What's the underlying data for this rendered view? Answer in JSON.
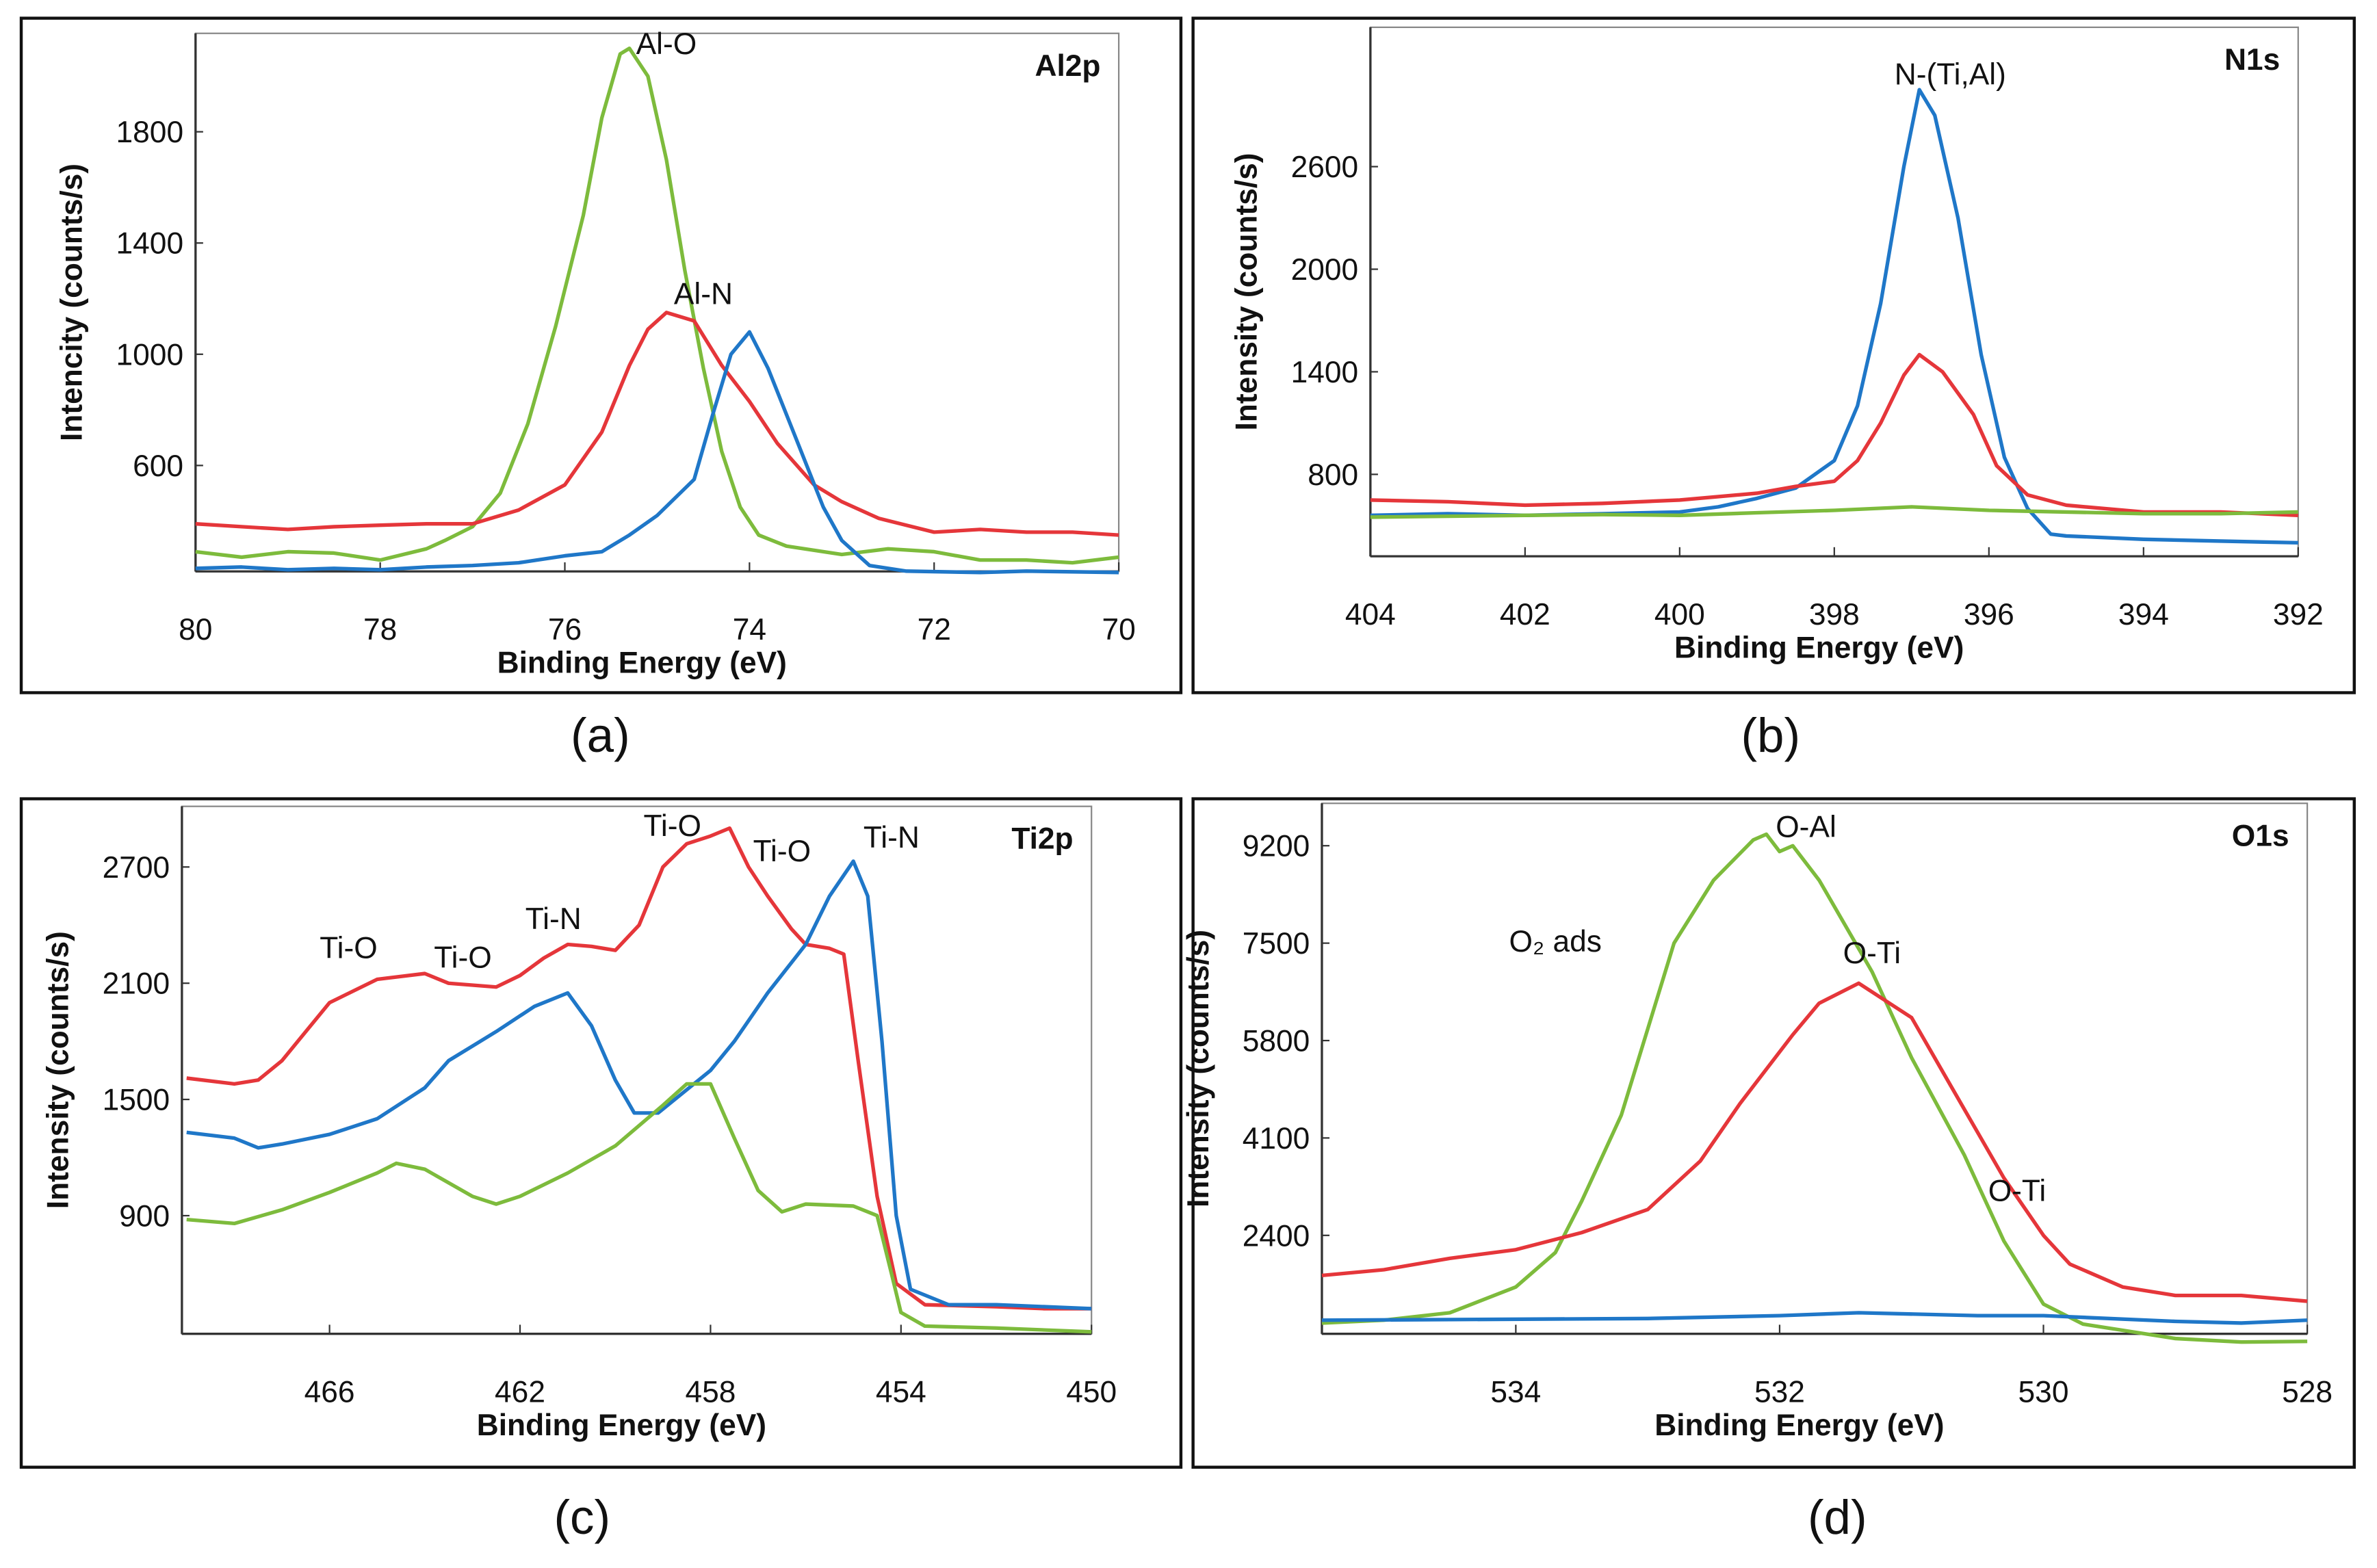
{
  "colors": {
    "blue": "#1f77c8",
    "red": "#e5363a",
    "green": "#7dbb3c"
  },
  "chart_data": [
    {
      "panel_label": "(a)",
      "type": "line",
      "title": "Al2p",
      "xlabel": "Binding Energy (eV)",
      "ylabel": "Intencity (counts/s)",
      "xlim": [
        80,
        70
      ],
      "ylim": [
        219,
        2154
      ],
      "xticks": [
        80,
        78,
        76,
        74,
        72,
        70
      ],
      "yticks": [
        600,
        1000,
        1400,
        1800
      ],
      "annotations": [
        {
          "text": "Al-O",
          "x": 74.9,
          "y": 2080
        },
        {
          "text": "Al-N",
          "x": 74.5,
          "y": 1180
        }
      ],
      "series": [
        {
          "color": "green",
          "x": [
            80,
            79.5,
            79,
            78.5,
            78,
            77.5,
            77.3,
            77,
            76.7,
            76.4,
            76.1,
            75.8,
            75.6,
            75.4,
            75.3,
            75.1,
            74.9,
            74.7,
            74.5,
            74.3,
            74.1,
            73.9,
            73.6,
            73,
            72.5,
            72,
            71.5,
            71,
            70.5,
            70
          ],
          "y": [
            290,
            270,
            290,
            285,
            260,
            300,
            330,
            380,
            500,
            750,
            1100,
            1500,
            1850,
            2080,
            2100,
            2000,
            1700,
            1300,
            950,
            650,
            450,
            350,
            310,
            280,
            300,
            290,
            260,
            260,
            250,
            270
          ]
        },
        {
          "color": "red",
          "x": [
            80,
            79.5,
            79,
            78.5,
            78,
            77.5,
            77,
            76.5,
            76,
            75.6,
            75.3,
            75.1,
            74.9,
            74.6,
            74.3,
            74,
            73.7,
            73.3,
            73,
            72.6,
            72,
            71.5,
            71,
            70.5,
            70
          ],
          "y": [
            390,
            380,
            370,
            380,
            385,
            390,
            390,
            440,
            530,
            720,
            960,
            1090,
            1150,
            1120,
            960,
            830,
            680,
            530,
            470,
            410,
            360,
            370,
            360,
            360,
            350
          ]
        },
        {
          "color": "blue",
          "x": [
            80,
            79.5,
            79,
            78.5,
            78,
            77.5,
            77,
            76.5,
            76,
            75.6,
            75.3,
            75,
            74.6,
            74.4,
            74.2,
            74,
            73.8,
            73.5,
            73.2,
            73,
            72.7,
            72.3,
            71.5,
            71,
            70
          ],
          "y": [
            230,
            235,
            225,
            230,
            225,
            235,
            240,
            250,
            275,
            290,
            350,
            420,
            550,
            780,
            1000,
            1080,
            950,
            700,
            450,
            330,
            240,
            220,
            215,
            220,
            215
          ]
        }
      ]
    },
    {
      "panel_label": "(b)",
      "type": "line",
      "title": "N1s",
      "xlabel": "Binding Energy (eV)",
      "ylabel": "Intensity (counts/s)",
      "xlim": [
        404,
        392
      ],
      "ylim": [
        321,
        3415
      ],
      "xticks": [
        404,
        402,
        400,
        398,
        396,
        394,
        392
      ],
      "yticks": [
        800,
        1400,
        2000,
        2600
      ],
      "annotations": [
        {
          "text": "N-(Ti,Al)",
          "x": 396.5,
          "y": 3080
        }
      ],
      "series": [
        {
          "color": "blue",
          "x": [
            404,
            403,
            402,
            401,
            400,
            399.5,
            399,
            398.5,
            398,
            397.7,
            397.4,
            397.1,
            396.9,
            396.7,
            396.4,
            396.1,
            395.8,
            395.5,
            395.2,
            395,
            394,
            393,
            392
          ],
          "y": [
            560,
            570,
            560,
            570,
            580,
            610,
            660,
            720,
            880,
            1200,
            1800,
            2600,
            3050,
            2900,
            2300,
            1500,
            900,
            600,
            450,
            440,
            420,
            410,
            400
          ]
        },
        {
          "color": "red",
          "x": [
            404,
            403,
            402,
            401,
            400,
            399,
            398.5,
            398,
            397.7,
            397.4,
            397.1,
            396.9,
            396.6,
            396.2,
            395.9,
            395.5,
            395,
            394,
            393,
            392
          ],
          "y": [
            650,
            640,
            620,
            630,
            650,
            690,
            730,
            760,
            880,
            1100,
            1380,
            1500,
            1400,
            1150,
            850,
            680,
            620,
            580,
            580,
            560
          ]
        },
        {
          "color": "green",
          "x": [
            404,
            403,
            402,
            401,
            400,
            399,
            398,
            397,
            396,
            395,
            394,
            393,
            392
          ],
          "y": [
            550,
            555,
            560,
            565,
            560,
            575,
            590,
            610,
            590,
            580,
            570,
            570,
            580
          ]
        }
      ]
    },
    {
      "panel_label": "(c)",
      "type": "line",
      "title": "Ti2p",
      "xlabel": "Binding Energy (eV)",
      "ylabel": "Intensity (counts/s)",
      "xlim": [
        469.1,
        450
      ],
      "ylim": [
        290,
        3013
      ],
      "xticks": [
        466,
        462,
        458,
        454,
        450
      ],
      "yticks": [
        900,
        1500,
        2100,
        2700
      ],
      "annotations": [
        {
          "text": "Ti-O",
          "x": 465.6,
          "y": 2230
        },
        {
          "text": "Ti-O",
          "x": 463.2,
          "y": 2180
        },
        {
          "text": "Ti-N",
          "x": 461.3,
          "y": 2380
        },
        {
          "text": "Ti-O",
          "x": 458.8,
          "y": 2860
        },
        {
          "text": "Ti-O",
          "x": 456.5,
          "y": 2730
        },
        {
          "text": "Ti-N",
          "x": 454.2,
          "y": 2800
        }
      ],
      "series": [
        {
          "color": "red",
          "x": [
            469,
            468,
            467.5,
            467,
            466.5,
            466,
            465,
            464,
            463.5,
            462.5,
            462,
            461.5,
            461,
            460.5,
            460,
            459.5,
            459,
            458.5,
            458,
            457.6,
            457.2,
            456.8,
            456.3,
            456,
            455.5,
            455.2,
            454.9,
            454.5,
            454.1,
            453.5,
            452,
            451,
            450
          ],
          "y": [
            1610,
            1580,
            1600,
            1700,
            1850,
            2000,
            2120,
            2150,
            2100,
            2080,
            2140,
            2230,
            2300,
            2290,
            2270,
            2400,
            2700,
            2820,
            2860,
            2900,
            2700,
            2550,
            2380,
            2300,
            2280,
            2250,
            1700,
            1000,
            550,
            440,
            430,
            420,
            420
          ]
        },
        {
          "color": "blue",
          "x": [
            469,
            468,
            467.5,
            467,
            466,
            465,
            464,
            463.5,
            462.5,
            461.7,
            461,
            460.5,
            460,
            459.6,
            459.1,
            458.5,
            458,
            457.5,
            456.8,
            456,
            455.5,
            455,
            454.7,
            454.4,
            454.1,
            453.8,
            453,
            452,
            450
          ],
          "y": [
            1330,
            1300,
            1250,
            1270,
            1320,
            1400,
            1560,
            1700,
            1850,
            1980,
            2050,
            1880,
            1600,
            1430,
            1430,
            1550,
            1650,
            1800,
            2050,
            2300,
            2550,
            2730,
            2550,
            1800,
            900,
            520,
            440,
            440,
            420
          ]
        },
        {
          "color": "green",
          "x": [
            469,
            468,
            467,
            466,
            465,
            464.6,
            464,
            463,
            462.5,
            462,
            461,
            460,
            459,
            458.5,
            458,
            457.5,
            457,
            456.5,
            456,
            455,
            454.5,
            454.2,
            454,
            453.5,
            452,
            450
          ],
          "y": [
            880,
            860,
            930,
            1020,
            1120,
            1170,
            1140,
            1000,
            960,
            1000,
            1120,
            1260,
            1470,
            1580,
            1580,
            1300,
            1030,
            920,
            960,
            950,
            900,
            600,
            400,
            330,
            320,
            300
          ]
        }
      ]
    },
    {
      "panel_label": "(d)",
      "type": "line",
      "title": "O1s",
      "xlabel": "Binding Energy (eV)",
      "ylabel": "Intensity (counts/s)",
      "xlim": [
        535.47,
        528
      ],
      "ylim": [
        682,
        9940
      ],
      "xticks": [
        534,
        532,
        530,
        528
      ],
      "yticks": [
        2400,
        4100,
        5800,
        7500,
        9200
      ],
      "annotations": [
        {
          "text": "O-Al",
          "x": 531.8,
          "y": 9350
        },
        {
          "text": "O₂ ads",
          "x": 533.7,
          "y": 7350
        },
        {
          "text": "O-Ti",
          "x": 531.3,
          "y": 7150
        },
        {
          "text": "O-Ti",
          "x": 530.2,
          "y": 3000
        }
      ],
      "series": [
        {
          "color": "green",
          "x": [
            535.47,
            535,
            534.5,
            534,
            533.7,
            533.5,
            533.2,
            533,
            532.8,
            532.5,
            532.2,
            532.1,
            532,
            531.9,
            531.7,
            531.3,
            531,
            530.6,
            530.3,
            530,
            529.7,
            529,
            528.5,
            528
          ],
          "y": [
            870,
            920,
            1050,
            1500,
            2100,
            3000,
            4500,
            6000,
            7500,
            8600,
            9300,
            9400,
            9100,
            9200,
            8600,
            7000,
            5500,
            3800,
            2300,
            1200,
            850,
            600,
            540,
            550
          ]
        },
        {
          "color": "red",
          "x": [
            535.47,
            535,
            534.5,
            534,
            533.5,
            533,
            532.6,
            532.3,
            531.9,
            531.7,
            531.4,
            531,
            530.7,
            530.3,
            530,
            529.8,
            529.4,
            529,
            528.5,
            528
          ],
          "y": [
            1700,
            1800,
            2000,
            2150,
            2450,
            2850,
            3700,
            4700,
            5900,
            6450,
            6800,
            6200,
            5000,
            3400,
            2400,
            1900,
            1500,
            1350,
            1350,
            1250
          ]
        },
        {
          "color": "blue",
          "x": [
            535.47,
            534.5,
            533,
            532,
            531.4,
            530.5,
            530,
            529,
            528.5,
            528
          ],
          "y": [
            920,
            930,
            950,
            1000,
            1050,
            1000,
            1000,
            900,
            870,
            920
          ]
        }
      ]
    }
  ]
}
